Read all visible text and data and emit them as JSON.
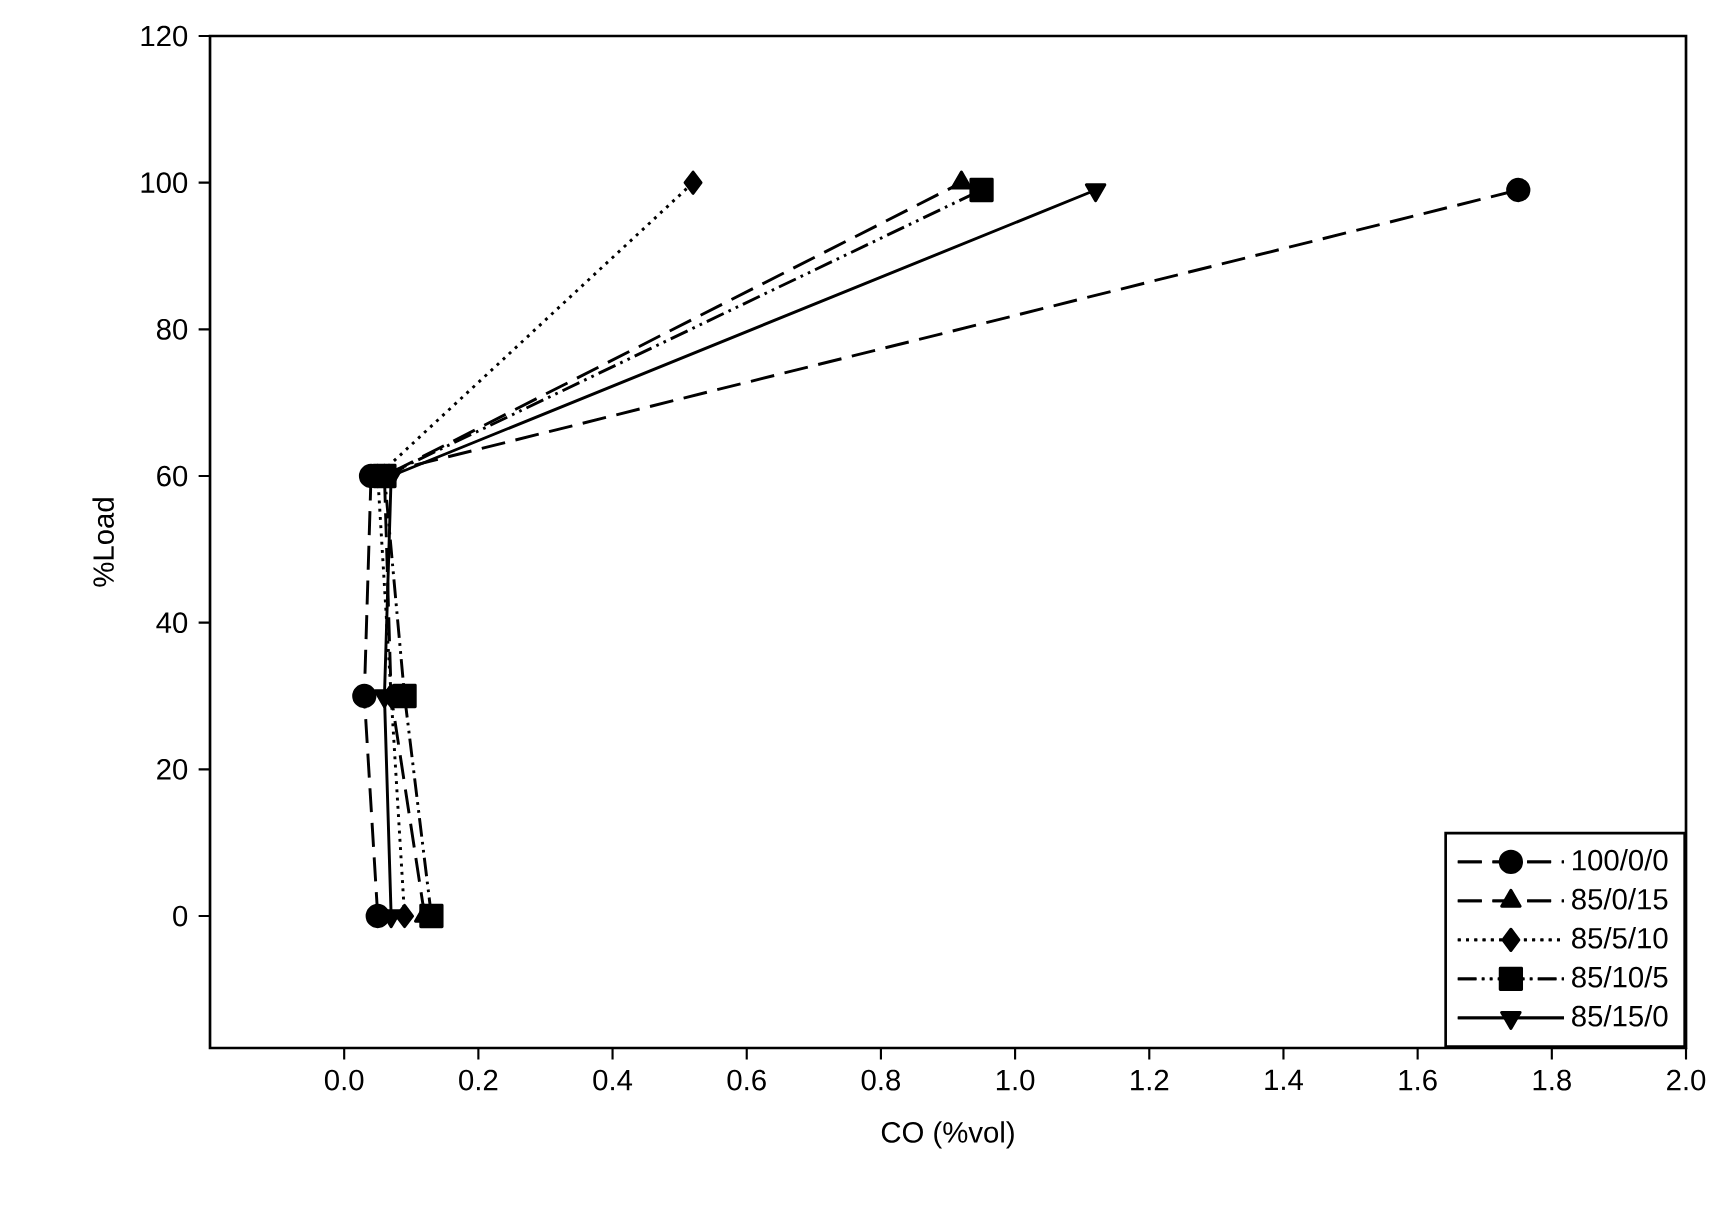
{
  "chart_data": {
    "type": "line",
    "xlabel": "CO (%vol)",
    "ylabel": "%Load",
    "xlim": [
      -0.2,
      2.0
    ],
    "ylim": [
      -18,
      120
    ],
    "xticks": [
      {
        "value": 0,
        "label": "0.0"
      },
      {
        "value": 0.2,
        "label": "0.2"
      },
      {
        "value": 0.4,
        "label": "0.4"
      },
      {
        "value": 0.6,
        "label": "0.6"
      },
      {
        "value": 0.8,
        "label": "0.8"
      },
      {
        "value": 1.0,
        "label": "1.0"
      },
      {
        "value": 1.2,
        "label": "1.2"
      },
      {
        "value": 1.4,
        "label": "1.4"
      },
      {
        "value": 1.6,
        "label": "1.6"
      },
      {
        "value": 1.8,
        "label": "1.8"
      },
      {
        "value": 2.0,
        "label": "2.0"
      }
    ],
    "yticks": [
      0,
      20,
      40,
      60,
      80,
      100,
      120
    ],
    "grid": false,
    "legend": "bottom right",
    "series": [
      {
        "name": "100/0/0",
        "color": "#000000",
        "marker": "circle",
        "line_style": "dashed",
        "x": [
          0.05,
          0.03,
          0.04,
          1.75
        ],
        "values": [
          0,
          30,
          60,
          99
        ]
      },
      {
        "name": "85/0/15",
        "color": "#000000",
        "marker": "triangle",
        "line_style": "dashed",
        "x": [
          0.12,
          0.07,
          0.06,
          0.92
        ],
        "values": [
          0,
          30,
          60,
          100
        ]
      },
      {
        "name": "85/5/10",
        "color": "#000000",
        "marker": "diamond",
        "line_style": "dotted",
        "x": [
          0.09,
          0.07,
          0.05,
          0.52
        ],
        "values": [
          0,
          30,
          60,
          100
        ]
      },
      {
        "name": "85/10/5",
        "color": "#000000",
        "marker": "square",
        "line_style": "dashdotdot",
        "x": [
          0.13,
          0.09,
          0.06,
          0.95
        ],
        "values": [
          0,
          30,
          60,
          99
        ]
      },
      {
        "name": "85/15/0",
        "color": "#000000",
        "marker": "triangle-down",
        "line_style": "solid",
        "x": [
          0.07,
          0.06,
          0.07,
          1.12
        ],
        "values": [
          0,
          30,
          60,
          99
        ]
      }
    ]
  }
}
